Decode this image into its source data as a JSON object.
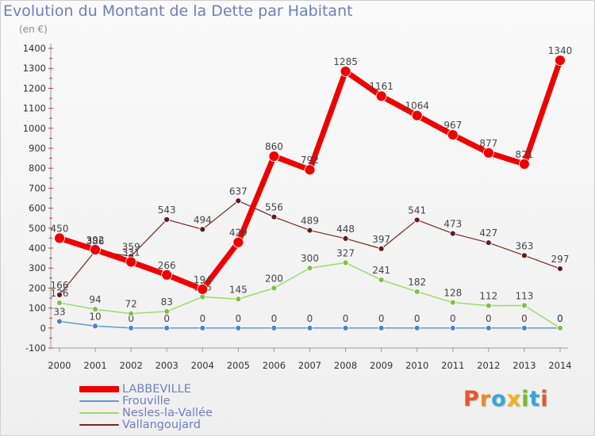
{
  "header": {
    "title": "Evolution du Montant de la Dette par Habitant",
    "subtitle": "(en €)"
  },
  "brand": {
    "text": "Proxiti",
    "letters": [
      "P",
      "r",
      "o",
      "x",
      "i",
      "t",
      "i"
    ],
    "colors": [
      "#e8552b",
      "#f08a1c",
      "#35a7d8",
      "#f2b21c",
      "#7ab929",
      "#35a7d8",
      "#e8552b"
    ]
  },
  "chart_data": {
    "type": "line",
    "x": [
      "2000",
      "2001",
      "2002",
      "2003",
      "2004",
      "2005",
      "2006",
      "2007",
      "2008",
      "2009",
      "2010",
      "2011",
      "2012",
      "2013",
      "2014"
    ],
    "ylim": [
      -100,
      1400
    ],
    "yticks": [
      -100,
      0,
      100,
      200,
      300,
      400,
      500,
      600,
      700,
      800,
      900,
      1000,
      1100,
      1200,
      1300,
      1400
    ],
    "grid": false,
    "legend_position": "bottom-left",
    "series": [
      {
        "name": "Frouville",
        "color": "#5b9bd5",
        "values": [
          33,
          10,
          0,
          0,
          0,
          0,
          0,
          0,
          0,
          0,
          0,
          0,
          0,
          0,
          0
        ]
      },
      {
        "name": "Nesles-la-Vallée",
        "color": "#99dd66",
        "values": [
          126,
          94,
          72,
          83,
          156,
          145,
          200,
          300,
          327,
          241,
          182,
          128,
          112,
          113,
          0
        ]
      },
      {
        "name": "Vallangoujard",
        "color": "#7a2424",
        "values": [
          166,
          386,
          359,
          543,
          494,
          637,
          556,
          489,
          448,
          397,
          541,
          473,
          427,
          363,
          297
        ]
      },
      {
        "name": "LABBEVILLE",
        "color": "#ee0000",
        "values": [
          450,
          392,
          331,
          266,
          194,
          429,
          860,
          792,
          1285,
          1161,
          1064,
          967,
          877,
          821,
          1340
        ]
      }
    ],
    "data_labels": [
      {
        "series": "Frouville",
        "labels": [
          "33",
          "10",
          "0",
          "0",
          "0",
          "0",
          "0",
          "0",
          "0",
          "0",
          "0",
          "0",
          "0",
          "0",
          "0"
        ]
      },
      {
        "series": "Nesles-la-Vallée",
        "labels": [
          "126",
          "94",
          "72",
          "83",
          "156",
          "145",
          "200",
          "300",
          "327",
          "241",
          "182",
          "128",
          "112",
          "113",
          "0"
        ]
      },
      {
        "series": "Vallangoujard",
        "labels": [
          "166",
          "386",
          "359",
          "543",
          "494",
          "637",
          "556",
          "489",
          "448",
          "397",
          "541",
          "473",
          "427",
          "363",
          "297"
        ]
      },
      {
        "series": "LABBEVILLE",
        "labels": [
          "450",
          "392",
          "331",
          "266",
          "194",
          "429",
          "860",
          "792",
          "1285",
          "1161",
          "1064",
          "967",
          "877",
          "821",
          "1340"
        ]
      }
    ],
    "legend_order": [
      "LABBEVILLE",
      "Frouville",
      "Nesles-la-Vallée",
      "Vallangoujard"
    ]
  }
}
